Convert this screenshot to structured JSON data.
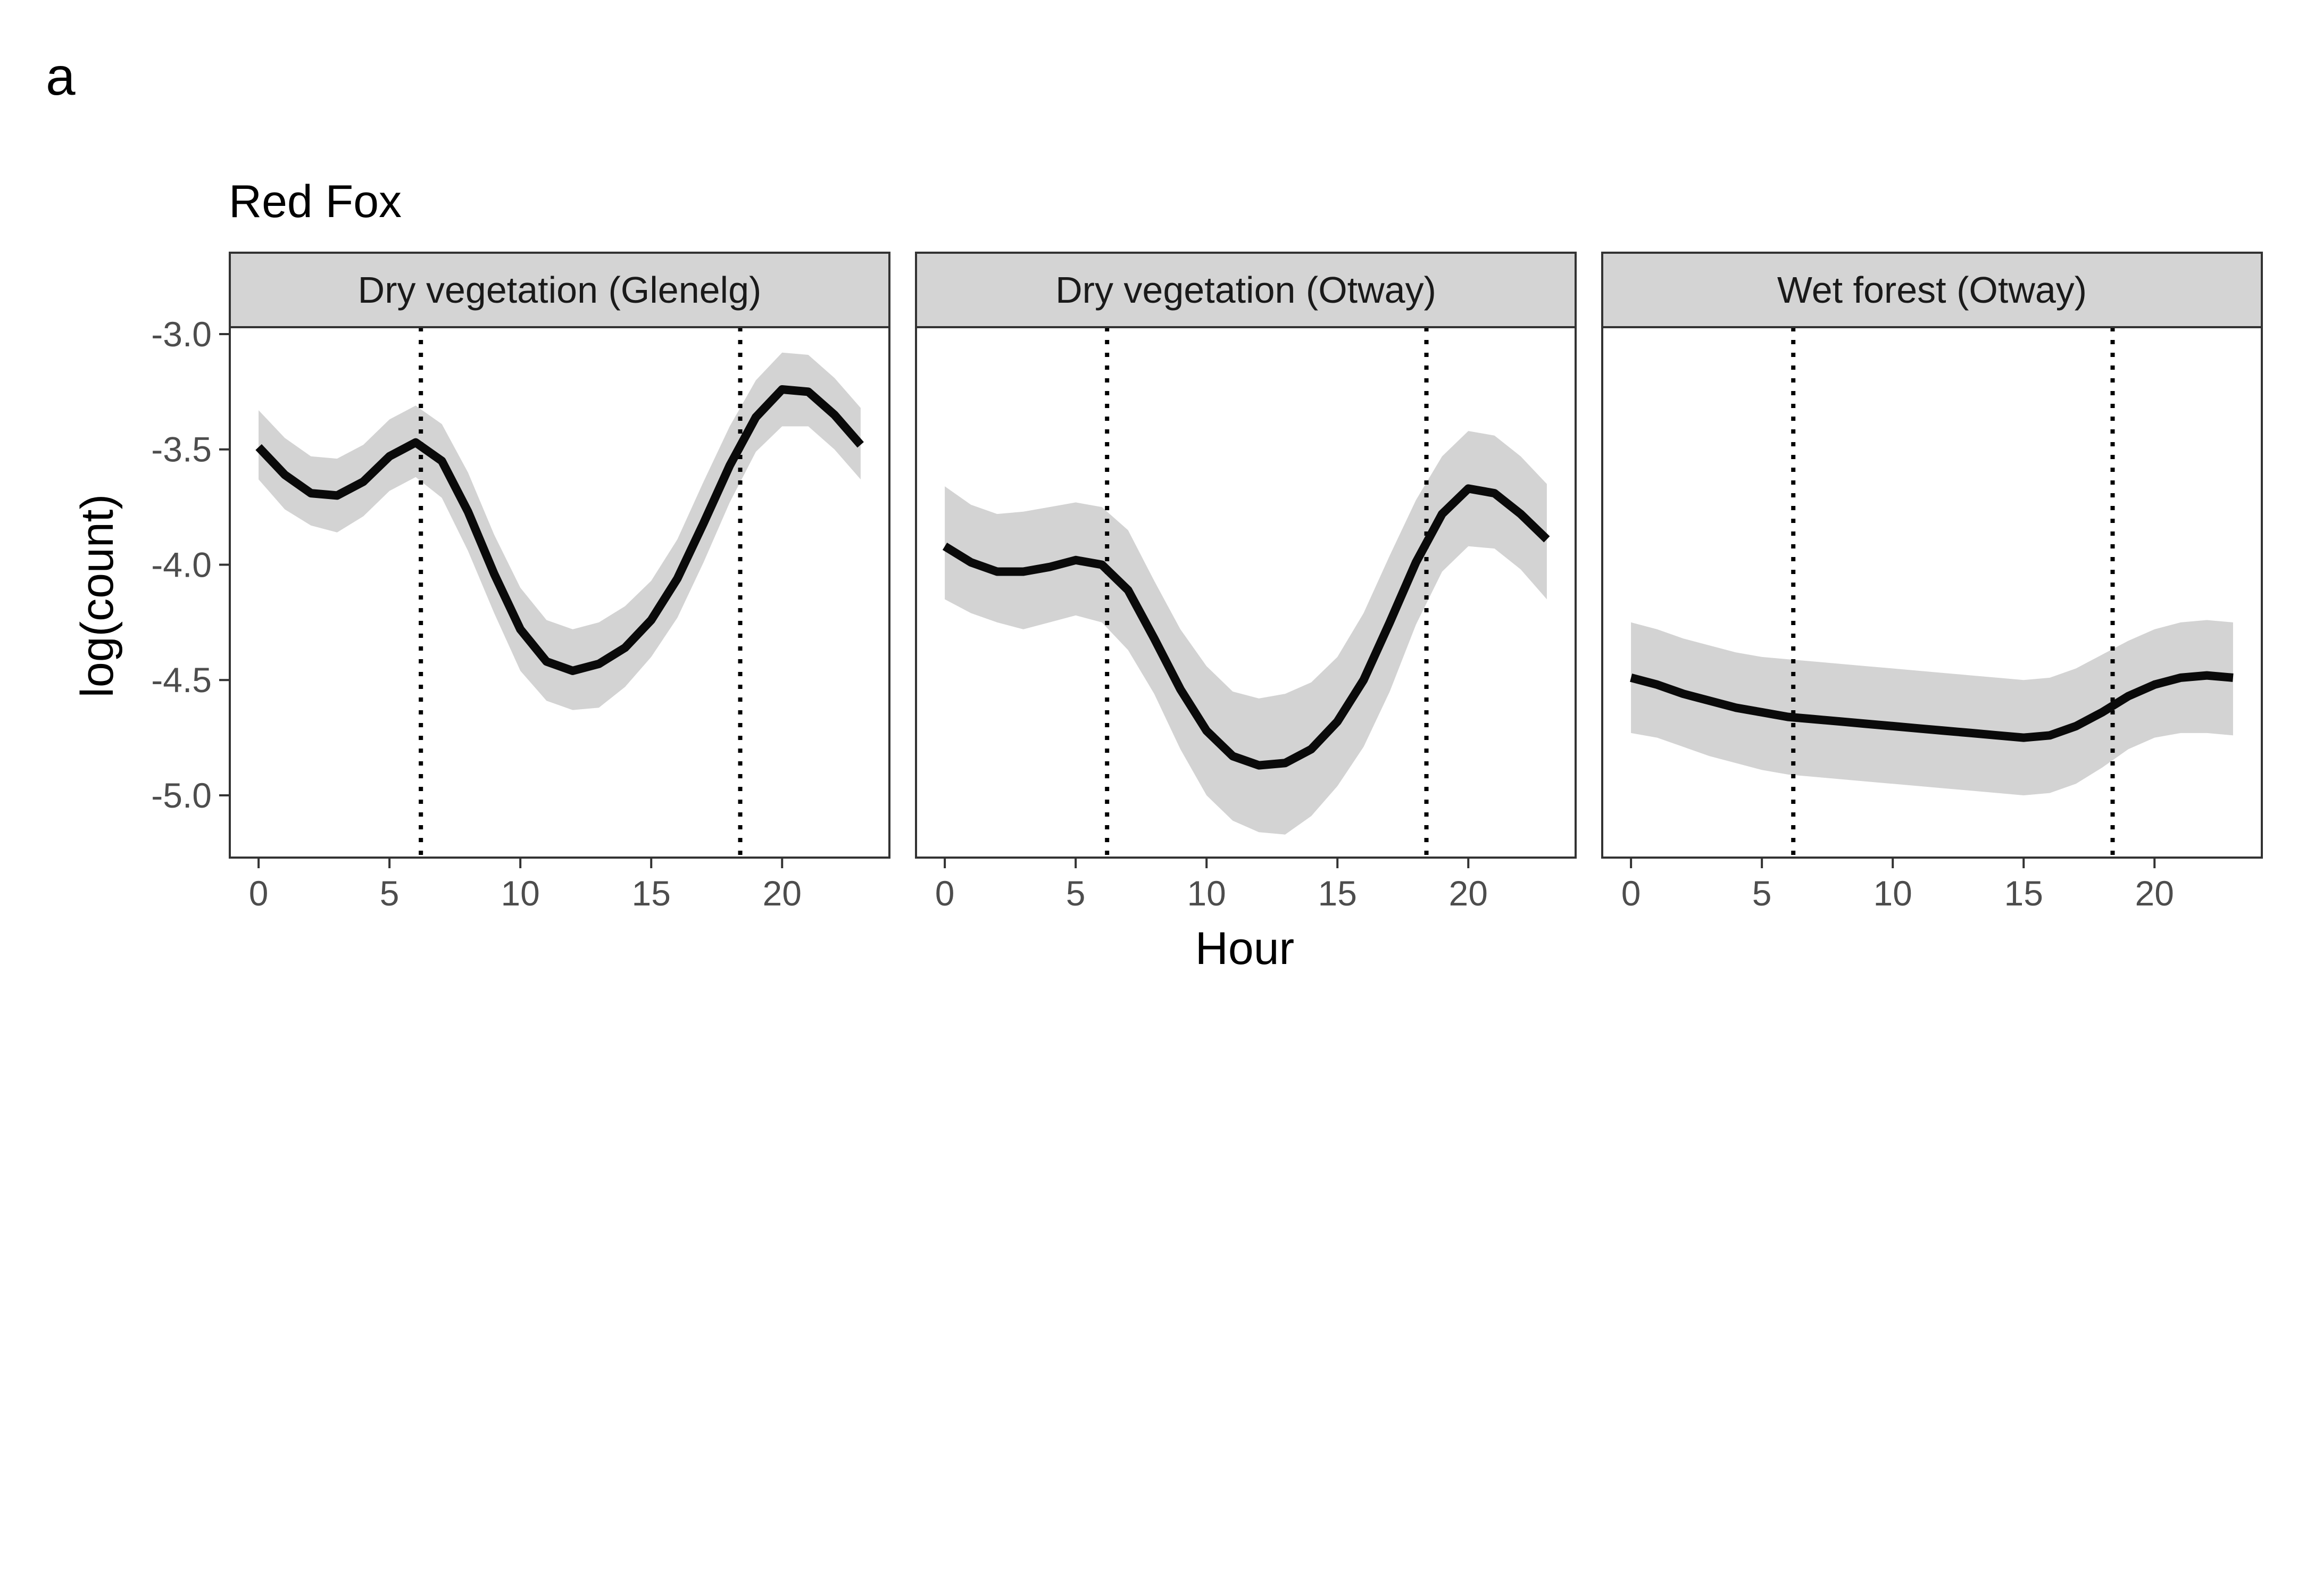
{
  "figure": {
    "panel_tag": "a",
    "title": "Red Fox"
  },
  "colors": {
    "line": "#0a0a0a",
    "ribbon": "#d3d3d3",
    "strip_fill": "#d4d4d4",
    "border": "#333333",
    "tick_text": "#4d4d4d"
  },
  "chart_data": {
    "type": "line",
    "title": "Red Fox",
    "xlabel": "Hour",
    "ylabel": "log(count)",
    "xlim": [
      -1.1,
      24.1
    ],
    "ylim": [
      -5.27,
      -2.97
    ],
    "x_ticks": [
      0,
      5,
      10,
      15,
      20
    ],
    "x_tick_labels": [
      "0",
      "5",
      "10",
      "15",
      "20"
    ],
    "y_ticks": [
      -3.0,
      -3.5,
      -4.0,
      -4.5,
      -5.0
    ],
    "y_tick_labels": [
      "-3.0",
      "-3.5",
      "-4.0",
      "-4.5",
      "-5.0"
    ],
    "grid": false,
    "reference_lines": {
      "style": "dotted",
      "x": [
        6.2,
        18.4
      ]
    },
    "facets": [
      {
        "label": "Dry vegetation (Glenelg)",
        "x": [
          0,
          1,
          2,
          3,
          4,
          5,
          6,
          7,
          8,
          9,
          10,
          11,
          12,
          13,
          14,
          15,
          16,
          17,
          18,
          19,
          20,
          21,
          22,
          23
        ],
        "y": [
          -3.49,
          -3.61,
          -3.69,
          -3.7,
          -3.64,
          -3.53,
          -3.47,
          -3.55,
          -3.77,
          -4.04,
          -4.28,
          -4.42,
          -4.46,
          -4.43,
          -4.36,
          -4.24,
          -4.06,
          -3.82,
          -3.57,
          -3.36,
          -3.24,
          -3.25,
          -3.35,
          -3.48
        ],
        "lower": [
          -3.63,
          -3.76,
          -3.83,
          -3.86,
          -3.79,
          -3.68,
          -3.62,
          -3.71,
          -3.94,
          -4.21,
          -4.46,
          -4.59,
          -4.63,
          -4.62,
          -4.53,
          -4.4,
          -4.23,
          -3.99,
          -3.73,
          -3.51,
          -3.4,
          -3.4,
          -3.5,
          -3.63
        ],
        "upper": [
          -3.33,
          -3.45,
          -3.53,
          -3.54,
          -3.48,
          -3.37,
          -3.31,
          -3.39,
          -3.6,
          -3.87,
          -4.1,
          -4.24,
          -4.28,
          -4.25,
          -4.18,
          -4.07,
          -3.89,
          -3.64,
          -3.4,
          -3.2,
          -3.08,
          -3.09,
          -3.19,
          -3.32
        ]
      },
      {
        "label": "Dry vegetation (Otway)",
        "x": [
          0,
          1,
          2,
          3,
          4,
          5,
          6,
          7,
          8,
          9,
          10,
          11,
          12,
          13,
          14,
          15,
          16,
          17,
          18,
          19,
          20,
          21,
          22,
          23
        ],
        "y": [
          -3.92,
          -3.99,
          -4.03,
          -4.03,
          -4.01,
          -3.98,
          -4.0,
          -4.11,
          -4.32,
          -4.54,
          -4.72,
          -4.83,
          -4.87,
          -4.86,
          -4.8,
          -4.68,
          -4.5,
          -4.25,
          -3.99,
          -3.78,
          -3.67,
          -3.69,
          -3.78,
          -3.89
        ],
        "lower": [
          -4.15,
          -4.21,
          -4.25,
          -4.28,
          -4.25,
          -4.22,
          -4.25,
          -4.37,
          -4.56,
          -4.8,
          -5.0,
          -5.11,
          -5.16,
          -5.17,
          -5.09,
          -4.96,
          -4.79,
          -4.55,
          -4.26,
          -4.03,
          -3.92,
          -3.93,
          -4.02,
          -4.15
        ],
        "upper": [
          -3.66,
          -3.74,
          -3.78,
          -3.77,
          -3.75,
          -3.73,
          -3.75,
          -3.85,
          -4.07,
          -4.28,
          -4.44,
          -4.55,
          -4.58,
          -4.56,
          -4.51,
          -4.4,
          -4.21,
          -3.96,
          -3.72,
          -3.53,
          -3.42,
          -3.44,
          -3.53,
          -3.65
        ]
      },
      {
        "label": "Wet forest (Otway)",
        "x": [
          0,
          1,
          2,
          3,
          4,
          5,
          6,
          7,
          8,
          9,
          10,
          11,
          12,
          13,
          14,
          15,
          16,
          17,
          18,
          19,
          20,
          21,
          22,
          23
        ],
        "y": [
          -4.49,
          -4.52,
          -4.56,
          -4.59,
          -4.62,
          -4.64,
          -4.66,
          -4.67,
          -4.68,
          -4.69,
          -4.7,
          -4.71,
          -4.72,
          -4.73,
          -4.74,
          -4.75,
          -4.74,
          -4.7,
          -4.64,
          -4.57,
          -4.52,
          -4.49,
          -4.48,
          -4.49
        ],
        "lower": [
          -4.73,
          -4.75,
          -4.79,
          -4.83,
          -4.86,
          -4.89,
          -4.91,
          -4.92,
          -4.93,
          -4.94,
          -4.95,
          -4.96,
          -4.97,
          -4.98,
          -4.99,
          -5.0,
          -4.99,
          -4.95,
          -4.88,
          -4.8,
          -4.75,
          -4.73,
          -4.73,
          -4.74
        ],
        "upper": [
          -4.25,
          -4.28,
          -4.32,
          -4.35,
          -4.38,
          -4.4,
          -4.41,
          -4.42,
          -4.43,
          -4.44,
          -4.45,
          -4.46,
          -4.47,
          -4.48,
          -4.49,
          -4.5,
          -4.49,
          -4.45,
          -4.39,
          -4.33,
          -4.28,
          -4.25,
          -4.24,
          -4.25
        ]
      }
    ]
  }
}
